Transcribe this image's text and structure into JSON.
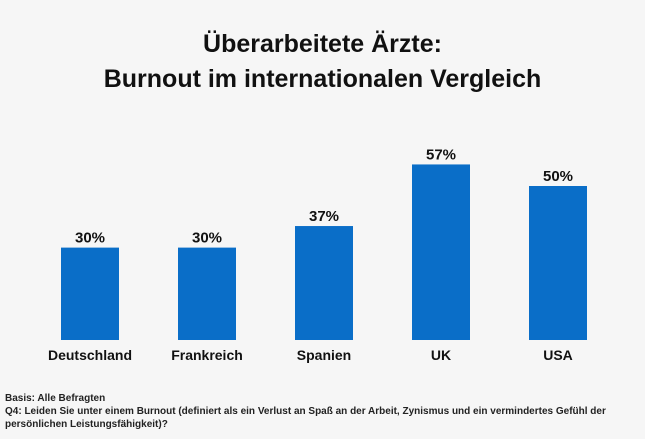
{
  "title_lines": [
    "Überarbeitete Ärzte:",
    "Burnout im internationalen Vergleich"
  ],
  "footnotes": {
    "basis": "Basis: Alle Befragten",
    "question": "Q4: Leiden Sie unter einem Burnout (definiert als ein Verlust an Spaß an der Arbeit, Zynismus und ein vermindertes Gefühl der persönlichen Leistungsfähigkeit)?"
  },
  "colors": {
    "bar": "#0a6ec8",
    "background": "#f6f6f6",
    "text": "#111111"
  },
  "chart_data": {
    "type": "bar",
    "title": "Überarbeitete Ärzte: Burnout im internationalen Vergleich",
    "categories": [
      "Deutschland",
      "Frankreich",
      "Spanien",
      "UK",
      "USA"
    ],
    "values": [
      30,
      30,
      37,
      57,
      50
    ],
    "value_labels": [
      "30%",
      "30%",
      "37%",
      "57%",
      "50%"
    ],
    "unit": "%",
    "ylim": [
      0,
      100
    ],
    "grid": false,
    "legend": "none",
    "xlabel": "",
    "ylabel": ""
  }
}
